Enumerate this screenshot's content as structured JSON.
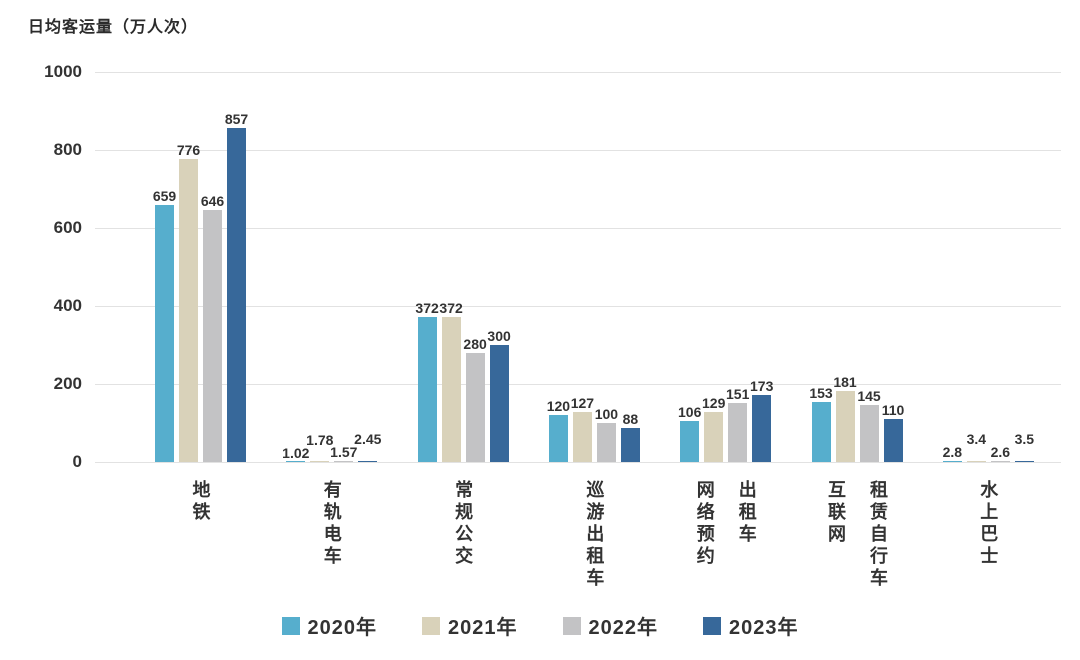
{
  "colors": {
    "grid_line": "#e2e2e2",
    "axis_text": "#333333",
    "title_text": "#2b2b2b",
    "background": "#ffffff"
  },
  "chart_data": {
    "type": "bar",
    "title": "日均客运量（万人次）",
    "categories": [
      "地铁",
      "有轨电车",
      "常规公交",
      "巡游出租车",
      "网络预约出租车",
      "互联网租赁自行车",
      "水上巴士"
    ],
    "category_display_lines": [
      [
        "地铁"
      ],
      [
        "有轨电车"
      ],
      [
        "常规公交"
      ],
      [
        "巡游出租车"
      ],
      [
        "网络预约",
        "出租车"
      ],
      [
        "互联网",
        "租赁自行车"
      ],
      [
        "水上巴士"
      ]
    ],
    "series": [
      {
        "name": "2020年",
        "color": "#56AECD",
        "values": [
          659,
          1.02,
          372,
          120,
          106,
          153,
          2.8
        ]
      },
      {
        "name": "2021年",
        "color": "#D9D2BA",
        "values": [
          776,
          1.78,
          372,
          127,
          129,
          181,
          3.4
        ]
      },
      {
        "name": "2022年",
        "color": "#C3C3C5",
        "values": [
          646,
          1.57,
          280,
          100,
          151,
          145,
          2.6
        ]
      },
      {
        "name": "2023年",
        "color": "#37689A",
        "values": [
          857,
          2.45,
          300,
          88,
          173,
          110,
          3.5
        ]
      }
    ],
    "ylim": [
      0,
      1000
    ],
    "yticks": [
      0,
      200,
      400,
      600,
      800,
      1000
    ],
    "grid": true,
    "legend_position": "bottom",
    "value_labels_shown": true
  }
}
